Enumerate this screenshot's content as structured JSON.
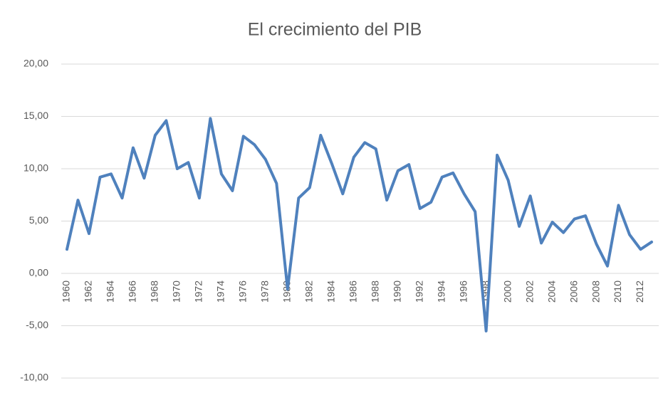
{
  "chart_data": {
    "type": "line",
    "title": "El crecimiento del PIB",
    "categories": [
      "1960",
      null,
      "1962",
      null,
      "1964",
      null,
      "1966",
      null,
      "1968",
      null,
      "1970",
      null,
      "1972",
      null,
      "1974",
      null,
      "1976",
      null,
      "1978",
      null,
      "1980",
      null,
      "1982",
      null,
      "1984",
      null,
      "1986",
      null,
      "1988",
      null,
      "1990",
      null,
      "1992",
      null,
      "1994",
      null,
      "1996",
      null,
      "1998",
      null,
      "2000",
      null,
      "2002",
      null,
      "2004",
      null,
      "2006",
      null,
      "2008",
      null,
      "2010",
      null,
      "2012",
      null
    ],
    "values": [
      2.3,
      7.0,
      3.8,
      9.2,
      9.5,
      7.2,
      12.0,
      9.1,
      13.2,
      14.6,
      10.0,
      10.6,
      7.2,
      14.8,
      9.5,
      7.9,
      13.1,
      12.3,
      10.9,
      8.6,
      -1.5,
      7.2,
      8.2,
      13.2,
      10.5,
      7.6,
      11.1,
      12.5,
      11.9,
      7.0,
      9.8,
      10.4,
      6.2,
      6.8,
      9.2,
      9.6,
      7.6,
      5.9,
      -5.5,
      11.3,
      8.9,
      4.5,
      7.4,
      2.9,
      4.9,
      3.9,
      5.2,
      5.5,
      2.8,
      0.7,
      6.5,
      3.7,
      2.3,
      3.0
    ],
    "color": "#4f81bd",
    "ylim": [
      -10,
      20
    ],
    "yticks": [
      {
        "value": -10,
        "label": "-10,00"
      },
      {
        "value": -5,
        "label": "-5,00"
      },
      {
        "value": 0,
        "label": "0,00"
      },
      {
        "value": 5,
        "label": "5,00"
      },
      {
        "value": 10,
        "label": "10,00"
      },
      {
        "value": 15,
        "label": "15,00"
      },
      {
        "value": 20,
        "label": "20,00"
      }
    ],
    "grid": true
  }
}
